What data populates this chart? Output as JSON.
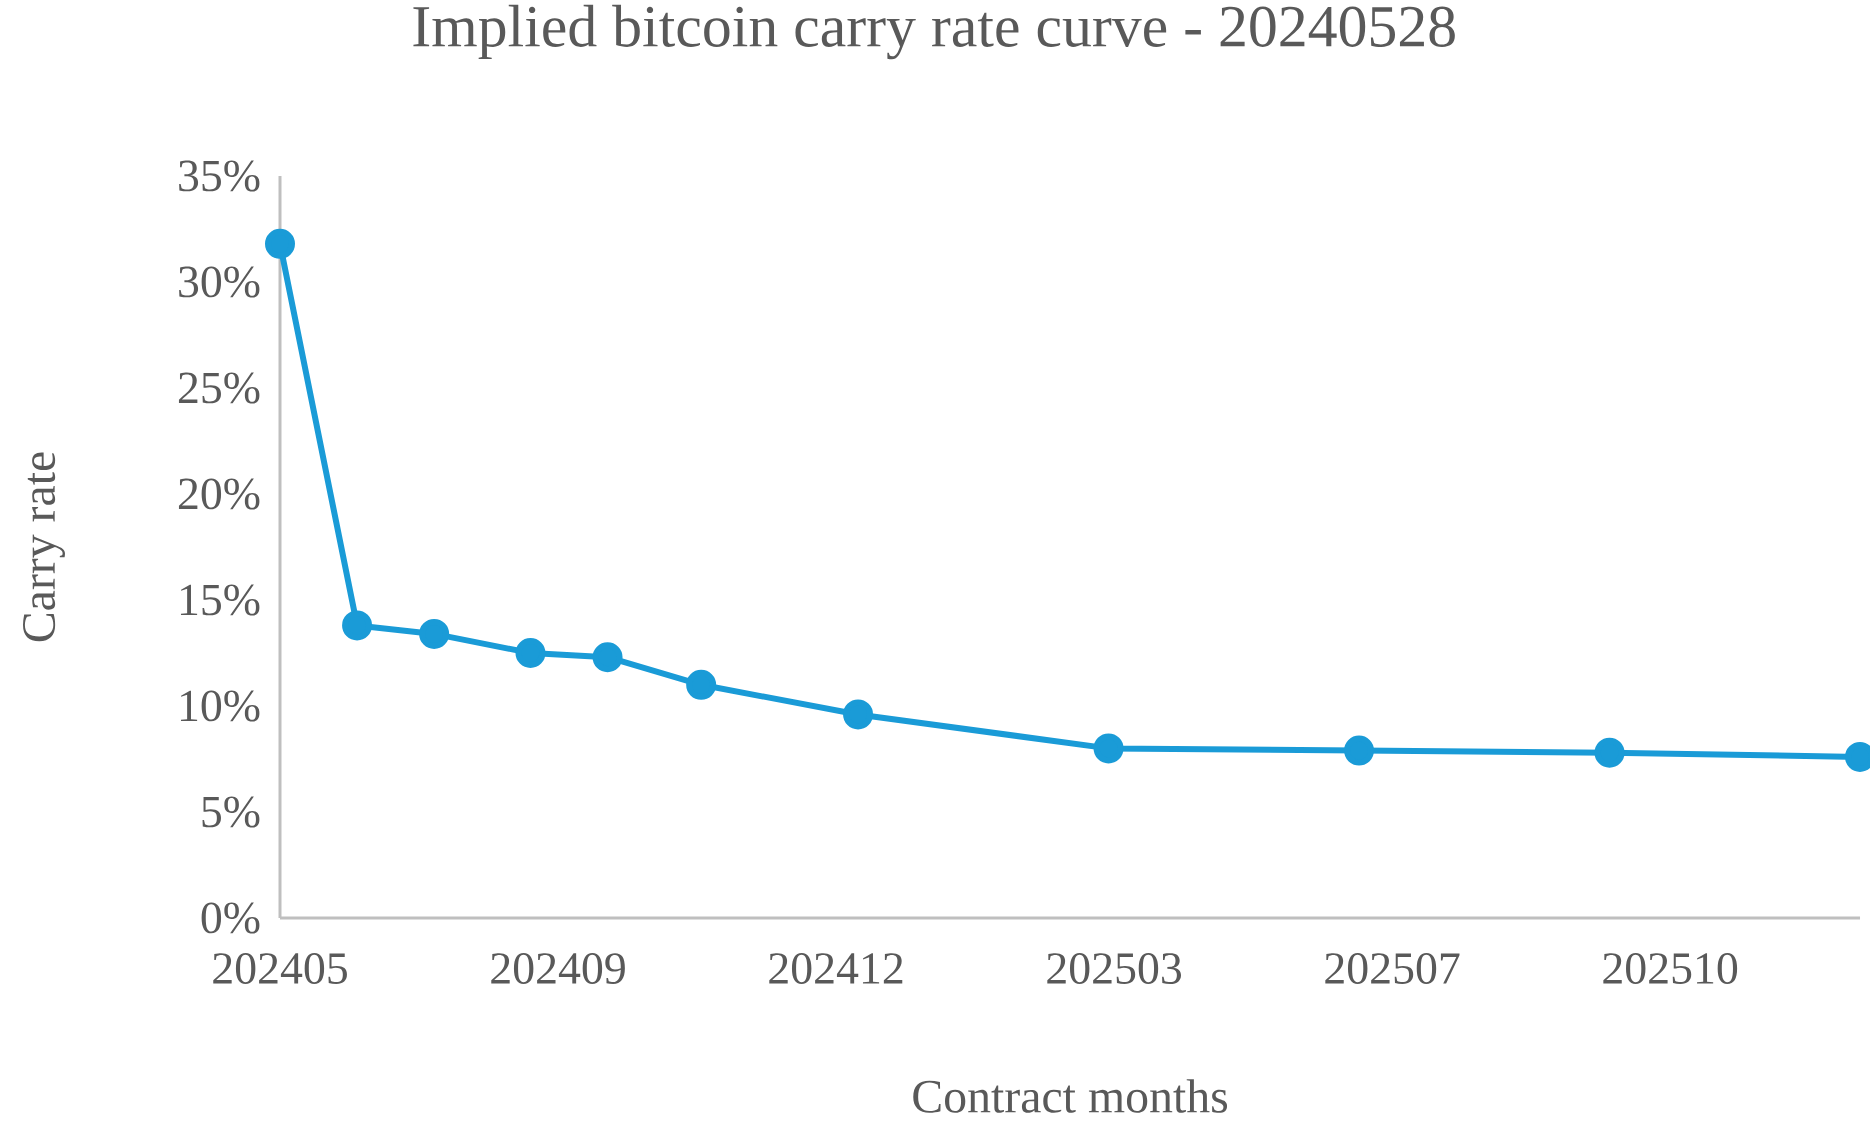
{
  "chart_data": {
    "type": "line",
    "title": "Implied bitcoin carry rate curve - 20240528",
    "xlabel": "Contract months",
    "ylabel": "Carry rate",
    "x": [
      "2024-05-31",
      "2024-06-28",
      "2024-07-26",
      "2024-08-30",
      "2024-09-27",
      "2024-10-31",
      "2024-12-27",
      "2025-03-28",
      "2025-06-27",
      "2025-09-26",
      "2025-12-26"
    ],
    "values": [
      31.8,
      13.8,
      13.4,
      12.5,
      12.3,
      11.0,
      9.6,
      8.0,
      7.9,
      7.8,
      7.6
    ],
    "color": "#1a9bd7",
    "marker": "circle",
    "line_style": "solid",
    "xlim": [
      "2024-05-31",
      "2025-12-26"
    ],
    "xticks": [
      {
        "value": "2024-05-31",
        "label": "202405"
      },
      {
        "value": "2024-09-09",
        "label": "202409"
      },
      {
        "value": "2024-12-19",
        "label": "202412"
      },
      {
        "value": "2025-03-30",
        "label": "202503"
      },
      {
        "value": "2025-07-09",
        "label": "202507"
      },
      {
        "value": "2025-10-18",
        "label": "202510"
      }
    ],
    "ylim": [
      0,
      35
    ],
    "yticks": [
      {
        "value": 0,
        "label": "0%"
      },
      {
        "value": 5,
        "label": "5%"
      },
      {
        "value": 10,
        "label": "10%"
      },
      {
        "value": 15,
        "label": "15%"
      },
      {
        "value": 20,
        "label": "20%"
      },
      {
        "value": 25,
        "label": "25%"
      },
      {
        "value": 30,
        "label": "30%"
      },
      {
        "value": 35,
        "label": "35%"
      }
    ]
  }
}
